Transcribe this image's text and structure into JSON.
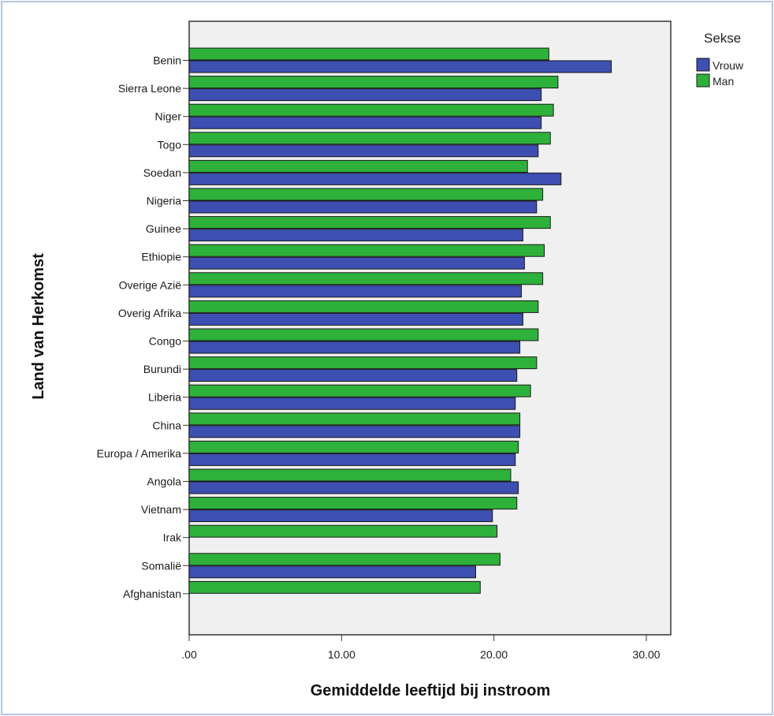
{
  "chart_data": {
    "type": "bar",
    "orientation": "horizontal",
    "categories": [
      "Benin",
      "Sierra Leone",
      "Niger",
      "Togo",
      "Soedan",
      "Nigeria",
      "Guinee",
      "Ethiopie",
      "Overige Azië",
      "Overig Afrika",
      "Congo",
      "Burundi",
      "Liberia",
      "China",
      "Europa / Amerika",
      "Angola",
      "Vietnam",
      "Irak",
      "Somalië",
      "Afghanistan"
    ],
    "series": [
      {
        "name": "Man",
        "color": "#2eb13a",
        "values": [
          23.6,
          24.2,
          23.9,
          23.7,
          22.2,
          23.2,
          23.7,
          23.3,
          23.2,
          22.9,
          22.9,
          22.8,
          22.4,
          21.7,
          21.6,
          21.1,
          21.5,
          20.2,
          20.4,
          19.1
        ]
      },
      {
        "name": "Vrouw",
        "color": "#3d4fb0",
        "values": [
          27.7,
          23.1,
          23.1,
          22.9,
          24.4,
          22.8,
          21.9,
          22.0,
          21.8,
          21.9,
          21.7,
          21.5,
          21.4,
          21.7,
          21.4,
          21.6,
          19.9,
          null,
          18.8,
          null
        ]
      }
    ],
    "xlabel": "Gemiddelde leeftijd bij instroom",
    "ylabel": "Land van Herkomst",
    "xticks": [
      ".00",
      "10.00",
      "20.00",
      "30.00"
    ],
    "xtick_values": [
      0,
      10,
      20,
      30
    ],
    "xlim": [
      0,
      31.6
    ],
    "legend": {
      "title": "Sekse",
      "position": "top-right",
      "entries": [
        "Vrouw",
        "Man"
      ]
    },
    "grid": false,
    "plot_background": "#f0f0f0"
  }
}
